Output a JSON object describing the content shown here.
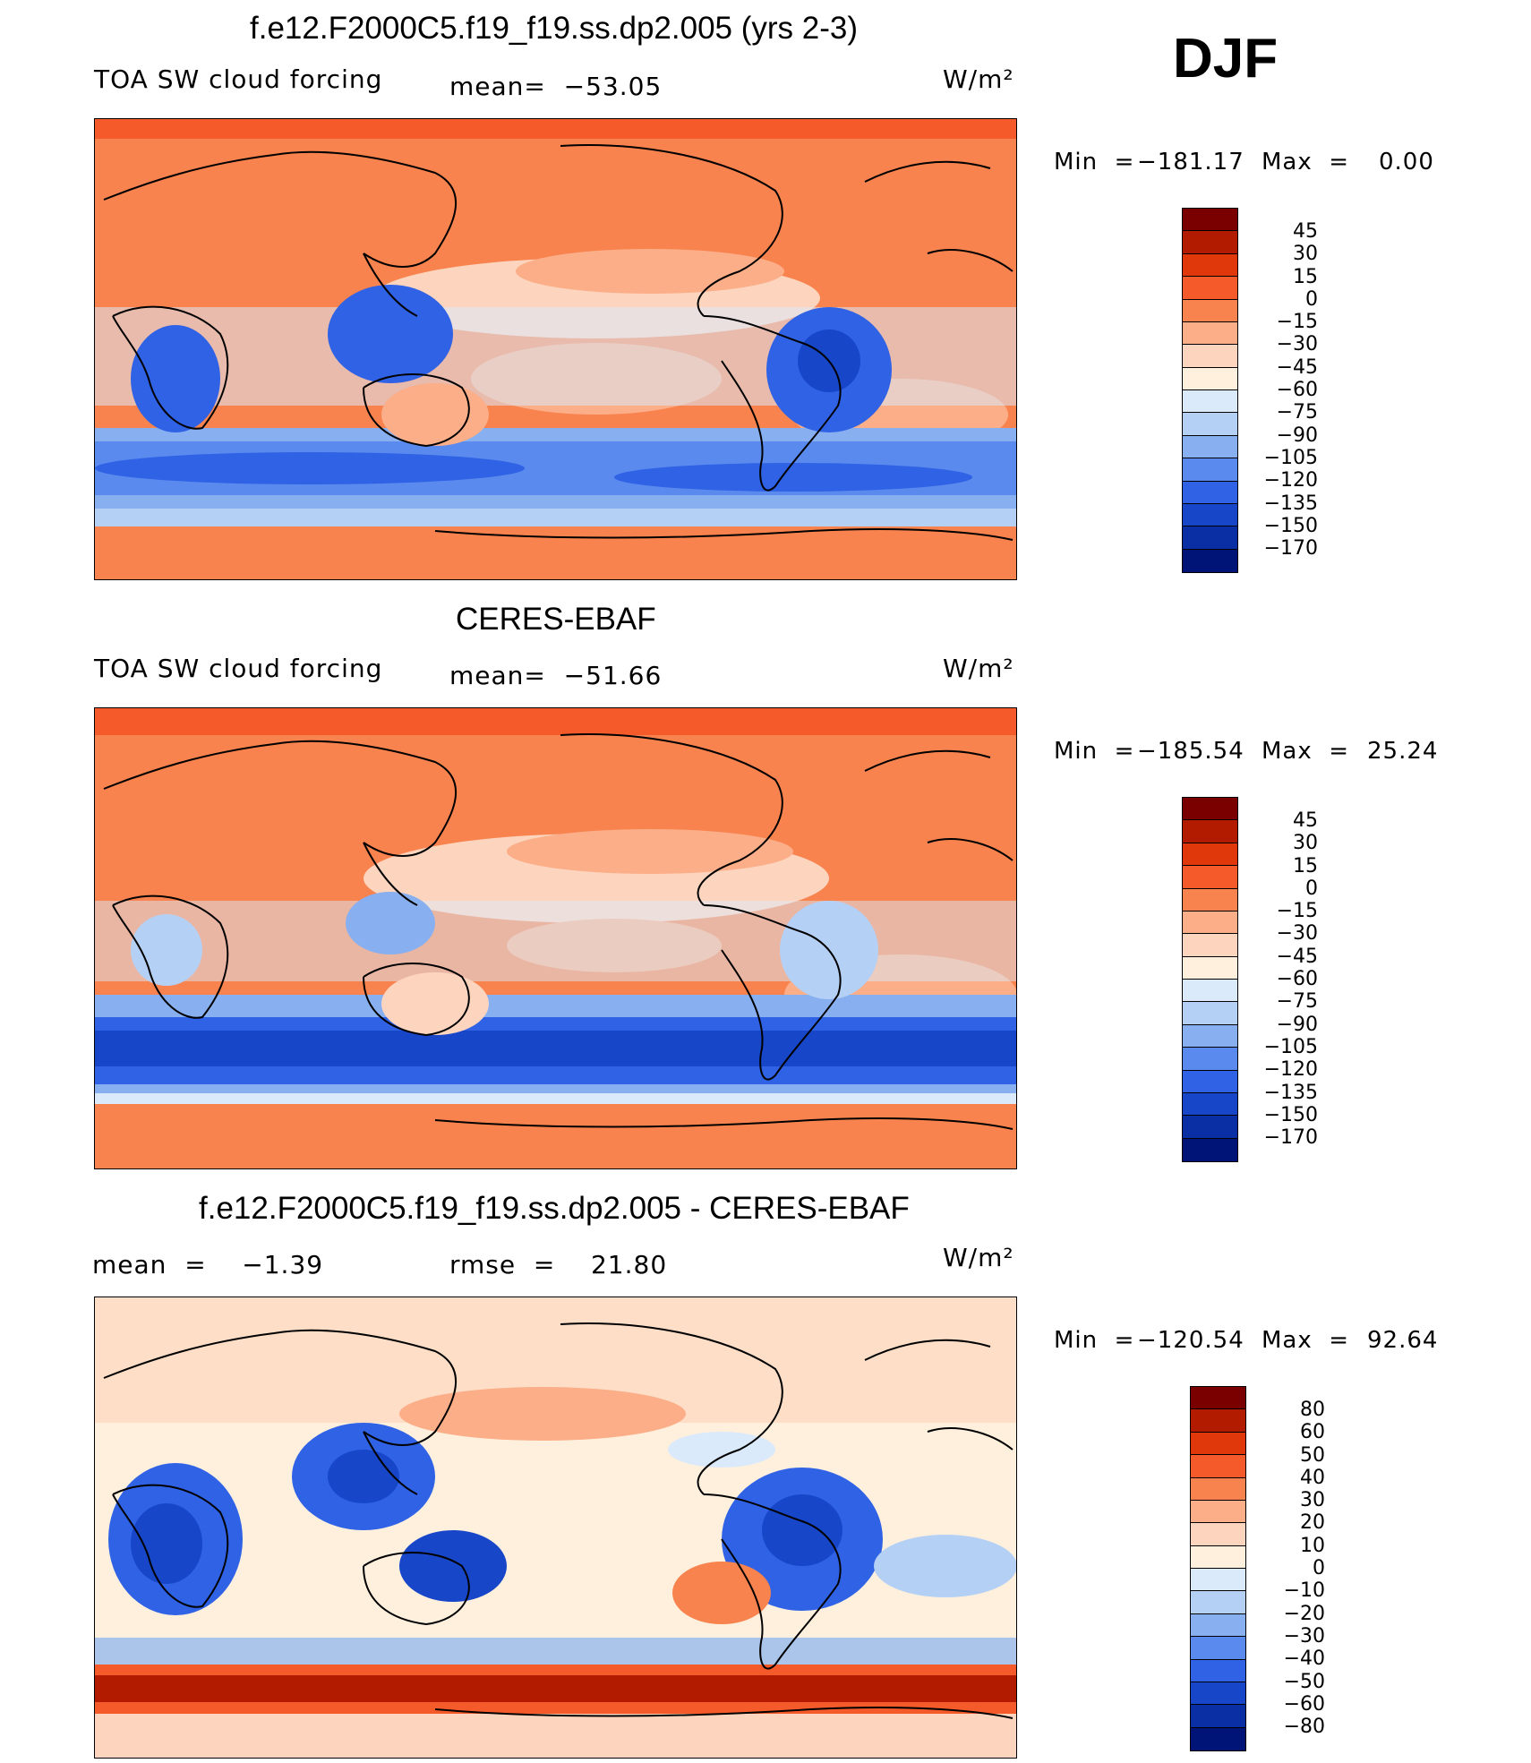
{
  "season": "DJF",
  "colors": {
    "cf_scale": [
      "#7a0000",
      "#b31b00",
      "#e0380a",
      "#f55a2a",
      "#f8834f",
      "#fbae88",
      "#fdd5be",
      "#fff0dd",
      "#dbeafa",
      "#b5d0f5",
      "#88b0f0",
      "#5b8aee",
      "#2f62e5",
      "#1747c8",
      "#0a2ea3",
      "#001478"
    ],
    "diff_scale": [
      "#7a0000",
      "#b31b00",
      "#e0380a",
      "#f55a2a",
      "#f8834f",
      "#fbae88",
      "#fdd5be",
      "#fff0dd",
      "#dbeafa",
      "#b5d0f5",
      "#88b0f0",
      "#5b8aee",
      "#2f62e5",
      "#1747c8",
      "#0a2ea3",
      "#001478"
    ]
  },
  "panels": [
    {
      "title": "f.e12.F2000C5.f19_f19.ss.dp2.005 (yrs 2-3)",
      "left_text": "TOA SW cloud forcing",
      "center_text": "mean=  −53.05",
      "units": "W/m²",
      "min_label": "Min  =",
      "min_value": "−181.17",
      "max_label": "Max  =",
      "max_value": "0.00",
      "levels": [
        "45",
        "30",
        "15",
        "0",
        "−15",
        "−30",
        "−45",
        "−60",
        "−75",
        "−90",
        "−105",
        "−120",
        "−135",
        "−150",
        "−170"
      ]
    },
    {
      "title": "CERES-EBAF",
      "left_text": "TOA SW cloud forcing",
      "center_text": "mean=  −51.66",
      "units": "W/m²",
      "min_label": "Min  =",
      "min_value": "−185.54",
      "max_label": "Max  =",
      "max_value": "25.24",
      "levels": [
        "45",
        "30",
        "15",
        "0",
        "−15",
        "−30",
        "−45",
        "−60",
        "−75",
        "−90",
        "−105",
        "−120",
        "−135",
        "−150",
        "−170"
      ]
    },
    {
      "title": "f.e12.F2000C5.f19_f19.ss.dp2.005 - CERES-EBAF",
      "left_text": "mean  =    −1.39",
      "center_text": "rmse  =    21.80",
      "units": "W/m²",
      "min_label": "Min  =",
      "min_value": "−120.54",
      "max_label": "Max  =",
      "max_value": "92.64",
      "levels": [
        "80",
        "60",
        "50",
        "40",
        "30",
        "20",
        "10",
        "0",
        "−10",
        "−20",
        "−30",
        "−40",
        "−50",
        "−60",
        "−80"
      ]
    }
  ]
}
